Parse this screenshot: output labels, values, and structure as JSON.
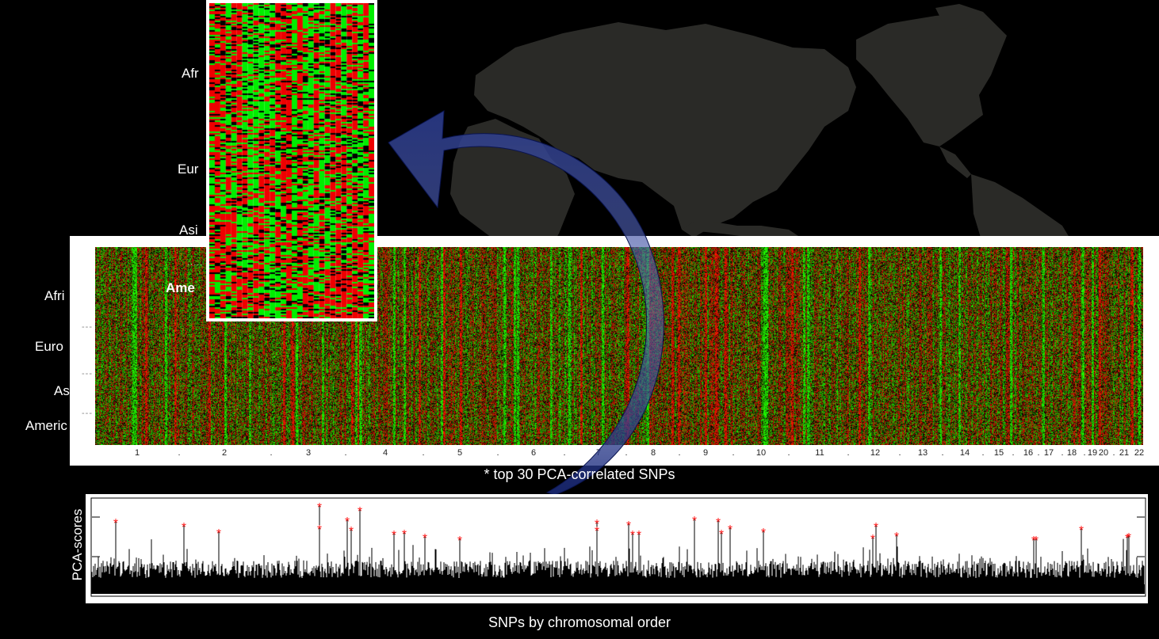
{
  "heatmap": {
    "colors": {
      "low": "#ff0000",
      "high": "#00ff00",
      "mid": "#000000",
      "map": "#2a2a27",
      "australia": "#333330",
      "nz": "#d07030",
      "arc": "#2a3a8a"
    },
    "chromosome_ticks": [
      "1",
      ".",
      "2",
      ".",
      "3",
      ".",
      "4",
      ".",
      "5",
      ".",
      "6",
      ".",
      "7",
      ".",
      "8",
      ".",
      "9",
      ".",
      "10",
      ".",
      "11",
      ".",
      "12",
      ".",
      "13",
      ".",
      "14",
      ".",
      "15",
      ".",
      "16",
      ".",
      "17",
      ".",
      "18",
      ".",
      "19",
      "20",
      ".",
      "21",
      "22"
    ],
    "main_populations": [
      "Afri",
      "Euro",
      "As",
      "Americ"
    ],
    "inset_populations": [
      "Afr",
      "Eur",
      "Asi",
      "Ame"
    ],
    "separator": "---",
    "inset_separator": "....."
  },
  "caption": "* top 30 PCA-correlated SNPs",
  "pca_plot": {
    "y_label": "PCA-scores",
    "x_label": "SNPs by chromosomal order",
    "marker": "*",
    "top_snp_count": 30
  }
}
